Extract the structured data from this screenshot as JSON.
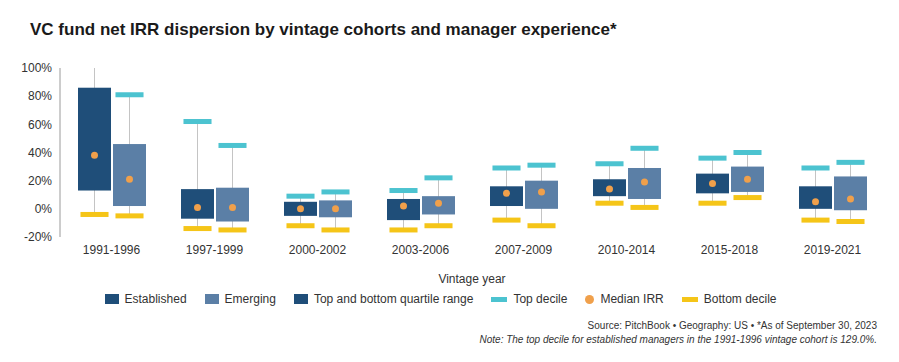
{
  "chart_data": {
    "type": "box",
    "title": "VC fund net IRR dispersion by vintage cohorts and manager experience*",
    "x_label": "Vintage year",
    "source": "Source: PitchBook • Geography: US • *As of September 30, 2023",
    "note": "Note: The top decile for established managers in the 1991-1996 vintage cohort is 129.0%.",
    "categories": [
      "1991-1996",
      "1997-1999",
      "2000-2002",
      "2003-2006",
      "2007-2009",
      "2010-2014",
      "2015-2018",
      "2019-2021"
    ],
    "series": [
      {
        "name": "Established",
        "color": "#1f4e79",
        "top_decile": [
          129,
          62,
          9,
          13,
          29,
          32,
          36,
          29
        ],
        "top_quartile": [
          86,
          14,
          5,
          7,
          16,
          21,
          25,
          16
        ],
        "median": [
          38,
          1,
          0,
          2,
          11,
          14,
          18,
          5
        ],
        "bottom_quartile": [
          13,
          -7,
          -5,
          -8,
          2,
          9,
          11,
          0
        ],
        "bottom_decile": [
          -4,
          -14,
          -12,
          -15,
          -8,
          4,
          4,
          -8
        ]
      },
      {
        "name": "Emerging",
        "color": "#5b7fa6",
        "top_decile": [
          81,
          45,
          12,
          22,
          31,
          43,
          40,
          33
        ],
        "top_quartile": [
          46,
          15,
          6,
          9,
          20,
          29,
          30,
          23
        ],
        "median": [
          21,
          1,
          0,
          4,
          12,
          19,
          21,
          7
        ],
        "bottom_quartile": [
          2,
          -9,
          -6,
          -4,
          0,
          7,
          12,
          -1
        ],
        "bottom_decile": [
          -5,
          -15,
          -15,
          -12,
          -12,
          1,
          8,
          -9
        ]
      }
    ],
    "elements": {
      "quartile_range": {
        "name": "Top and bottom quartile range",
        "color": "#1f4e79"
      },
      "top_decile": {
        "name": "Top decile",
        "color": "#4cc3d0"
      },
      "median": {
        "name": "Median IRR",
        "color": "#f0a04b"
      },
      "bottom_decile": {
        "name": "Bottom decile",
        "color": "#f5c518"
      }
    },
    "ylim": [
      -20,
      100
    ],
    "yticks": [
      {
        "value": -20,
        "label": "-20%"
      },
      {
        "value": 0,
        "label": "0%"
      },
      {
        "value": 20,
        "label": "20%"
      },
      {
        "value": 40,
        "label": "40%"
      },
      {
        "value": 60,
        "label": "60%"
      },
      {
        "value": 80,
        "label": "80%"
      },
      {
        "value": 100,
        "label": "100%"
      }
    ],
    "grid": false
  }
}
